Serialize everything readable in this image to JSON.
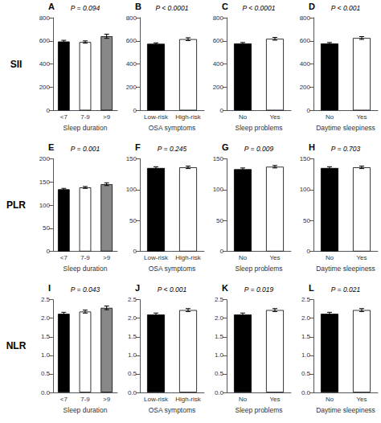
{
  "chart_data": [
    {
      "type": "bar",
      "title": "A",
      "annotations": [
        "P = 0.094"
      ],
      "xlabel": "Sleep duration",
      "ylabel": "SII",
      "categories": [
        "<7",
        "7-9",
        ">9"
      ],
      "values": [
        595,
        590,
        640
      ],
      "errors": [
        10,
        10,
        18
      ],
      "colors": [
        "#000000",
        "#ffffff",
        "#888888"
      ],
      "ylim": [
        0,
        800
      ],
      "yticks": [
        0,
        200,
        400,
        600,
        800
      ],
      "grid": false
    },
    {
      "type": "bar",
      "title": "B",
      "annotations": [
        "P < 0.0001"
      ],
      "xlabel": "OSA symptoms",
      "categories": [
        "Low-risk",
        "High-risk"
      ],
      "values": [
        575,
        615
      ],
      "errors": [
        8,
        12
      ],
      "colors": [
        "#000000",
        "#ffffff"
      ],
      "ylim": [
        0,
        800
      ],
      "yticks": [
        0,
        200,
        400,
        600,
        800
      ],
      "grid": false
    },
    {
      "type": "bar",
      "title": "C",
      "annotations": [
        "P < 0.0001"
      ],
      "xlabel": "Sleep problems",
      "categories": [
        "No",
        "Yes"
      ],
      "values": [
        578,
        618
      ],
      "errors": [
        8,
        12
      ],
      "colors": [
        "#000000",
        "#ffffff"
      ],
      "ylim": [
        0,
        800
      ],
      "yticks": [
        0,
        200,
        400,
        600,
        800
      ],
      "grid": false
    },
    {
      "type": "bar",
      "title": "D",
      "annotations": [
        "P < 0.001"
      ],
      "xlabel": "Daytime sleepiness",
      "categories": [
        "No",
        "Yes"
      ],
      "values": [
        578,
        625
      ],
      "errors": [
        8,
        12
      ],
      "colors": [
        "#000000",
        "#ffffff"
      ],
      "ylim": [
        0,
        800
      ],
      "yticks": [
        0,
        200,
        400,
        600,
        800
      ],
      "grid": false
    },
    {
      "type": "bar",
      "title": "E",
      "annotations": [
        "P = 0.001"
      ],
      "xlabel": "Sleep duration",
      "ylabel": "PLR",
      "categories": [
        "<7",
        "7-9",
        ">9"
      ],
      "values": [
        134,
        138,
        145
      ],
      "errors": [
        2,
        2,
        3
      ],
      "colors": [
        "#000000",
        "#ffffff",
        "#888888"
      ],
      "ylim": [
        0,
        200
      ],
      "yticks": [
        0,
        50,
        100,
        150,
        200
      ],
      "grid": false
    },
    {
      "type": "bar",
      "title": "F",
      "annotations": [
        "P = 0.245"
      ],
      "xlabel": "OSA symptoms",
      "categories": [
        "Low-risk",
        "High-risk"
      ],
      "values": [
        135,
        136
      ],
      "errors": [
        2,
        2
      ],
      "colors": [
        "#000000",
        "#ffffff"
      ],
      "ylim": [
        0,
        150
      ],
      "yticks": [
        0,
        50,
        100,
        150
      ],
      "grid": false
    },
    {
      "type": "bar",
      "title": "G",
      "annotations": [
        "P = 0.009"
      ],
      "xlabel": "Sleep problems",
      "categories": [
        "No",
        "Yes"
      ],
      "values": [
        133,
        137
      ],
      "errors": [
        2,
        2
      ],
      "colors": [
        "#000000",
        "#ffffff"
      ],
      "ylim": [
        0,
        150
      ],
      "yticks": [
        0,
        50,
        100,
        150
      ],
      "grid": false
    },
    {
      "type": "bar",
      "title": "H",
      "annotations": [
        "P = 0.703"
      ],
      "xlabel": "Daytime sleepiness",
      "categories": [
        "No",
        "Yes"
      ],
      "values": [
        135,
        136
      ],
      "errors": [
        2,
        2
      ],
      "colors": [
        "#000000",
        "#ffffff"
      ],
      "ylim": [
        0,
        150
      ],
      "yticks": [
        0,
        50,
        100,
        150
      ],
      "grid": false
    },
    {
      "type": "bar",
      "title": "I",
      "annotations": [
        "P = 0.043"
      ],
      "xlabel": "Sleep duration",
      "ylabel": "NLR",
      "categories": [
        "<7",
        "7-9",
        ">9"
      ],
      "values": [
        2.12,
        2.18,
        2.28
      ],
      "errors": [
        0.04,
        0.04,
        0.05
      ],
      "colors": [
        "#000000",
        "#ffffff",
        "#888888"
      ],
      "ylim": [
        0,
        2.5
      ],
      "yticks": [
        {
          "value": 0,
          "label": "0.0"
        },
        0.5,
        {
          "value": 1,
          "label": "1.0"
        },
        1.5,
        {
          "value": 2,
          "label": "2.0"
        },
        2.5
      ],
      "grid": false
    },
    {
      "type": "bar",
      "title": "J",
      "annotations": [
        "P < 0.001"
      ],
      "xlabel": "OSA symptoms",
      "categories": [
        "Low-risk",
        "High-risk"
      ],
      "values": [
        2.1,
        2.22
      ],
      "errors": [
        0.04,
        0.04
      ],
      "colors": [
        "#000000",
        "#ffffff"
      ],
      "ylim": [
        0,
        2.5
      ],
      "yticks": [
        {
          "value": 0,
          "label": "0.0"
        },
        0.5,
        {
          "value": 1,
          "label": "1.0"
        },
        1.5,
        {
          "value": 2,
          "label": "2.0"
        },
        2.5
      ],
      "grid": false
    },
    {
      "type": "bar",
      "title": "K",
      "annotations": [
        "P = 0.019"
      ],
      "xlabel": "Sleep problems",
      "categories": [
        "No",
        "Yes"
      ],
      "values": [
        2.1,
        2.22
      ],
      "errors": [
        0.04,
        0.04
      ],
      "colors": [
        "#000000",
        "#ffffff"
      ],
      "ylim": [
        0,
        2.5
      ],
      "yticks": [
        {
          "value": 0,
          "label": "0.0"
        },
        0.5,
        {
          "value": 1,
          "label": "1.0"
        },
        1.5,
        {
          "value": 2,
          "label": "2.0"
        },
        2.5
      ],
      "grid": false
    },
    {
      "type": "bar",
      "title": "L",
      "annotations": [
        "P = 0.021"
      ],
      "xlabel": "Daytime sleepiness",
      "categories": [
        "No",
        "Yes"
      ],
      "values": [
        2.12,
        2.22
      ],
      "errors": [
        0.04,
        0.04
      ],
      "colors": [
        "#000000",
        "#ffffff"
      ],
      "ylim": [
        0,
        2.5
      ],
      "yticks": [
        {
          "value": 0,
          "label": "0.0"
        },
        0.5,
        {
          "value": 1,
          "label": "1.0"
        },
        1.5,
        {
          "value": 2,
          "label": "2.0"
        },
        2.5
      ],
      "grid": false
    }
  ]
}
